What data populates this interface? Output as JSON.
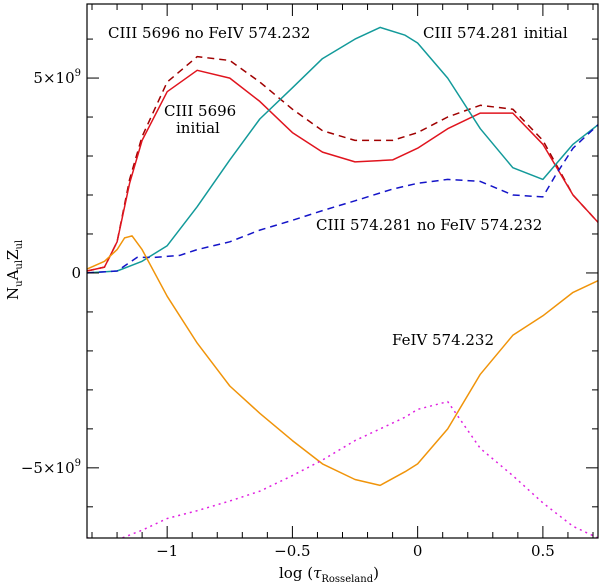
{
  "chart_data": {
    "type": "line",
    "xlabel": {
      "text": "log (",
      "tau": "τ",
      "sub": "Rosseland",
      "close": ")"
    },
    "ylabel": {
      "N": "N",
      "u1": "u",
      "A": "A",
      "ul1": "ul",
      "Z": "Z",
      "ul2": "ul"
    },
    "xlim": [
      -1.32,
      0.72
    ],
    "ylim": [
      -6.8,
      6.9
    ],
    "x_ticks": [
      {
        "value": -1.0,
        "label": "−1"
      },
      {
        "value": -0.5,
        "label": "−0.5"
      },
      {
        "value": 0.0,
        "label": "0"
      },
      {
        "value": 0.5,
        "label": "0.5"
      }
    ],
    "y_ticks": [
      {
        "value": 5,
        "mant": "5×10",
        "exp": "9"
      },
      {
        "value": 0,
        "mant": "0",
        "exp": ""
      },
      {
        "value": -5,
        "mant": "−5×10",
        "exp": "9"
      }
    ],
    "y_unit": "1e9",
    "series": [
      {
        "name": "CIII 5696 no FeIV 574.232",
        "color": "#a00000",
        "dash": "7,5",
        "width": 1.5,
        "x": [
          -1.32,
          -1.25,
          -1.2,
          -1.15,
          -1.1,
          -1.0,
          -0.88,
          -0.75,
          -0.63,
          -0.5,
          -0.38,
          -0.25,
          -0.1,
          0.0,
          0.12,
          0.25,
          0.38,
          0.5,
          0.62,
          0.72
        ],
        "y": [
          0.05,
          0.15,
          0.8,
          2.4,
          3.5,
          4.9,
          5.55,
          5.45,
          4.9,
          4.2,
          3.65,
          3.4,
          3.4,
          3.6,
          4.0,
          4.3,
          4.2,
          3.4,
          2.0,
          1.3
        ]
      },
      {
        "name": "CIII 5696 initial",
        "color": "#e0141e",
        "dash": "",
        "width": 1.5,
        "x": [
          -1.32,
          -1.25,
          -1.2,
          -1.15,
          -1.1,
          -1.0,
          -0.88,
          -0.75,
          -0.63,
          -0.5,
          -0.38,
          -0.25,
          -0.1,
          0.0,
          0.12,
          0.25,
          0.38,
          0.5,
          0.62,
          0.72
        ],
        "y": [
          0.05,
          0.15,
          0.8,
          2.3,
          3.4,
          4.65,
          5.2,
          5.0,
          4.4,
          3.6,
          3.1,
          2.85,
          2.9,
          3.2,
          3.7,
          4.1,
          4.1,
          3.3,
          2.0,
          1.3
        ]
      },
      {
        "name": "CIII 574.281 initial",
        "color": "#139a9a",
        "dash": "",
        "width": 1.5,
        "x": [
          -1.32,
          -1.2,
          -1.1,
          -1.0,
          -0.88,
          -0.75,
          -0.63,
          -0.5,
          -0.38,
          -0.25,
          -0.15,
          -0.05,
          0.0,
          0.12,
          0.25,
          0.38,
          0.5,
          0.62,
          0.72
        ],
        "y": [
          0.0,
          0.05,
          0.3,
          0.7,
          1.7,
          2.9,
          3.95,
          4.75,
          5.5,
          6.0,
          6.3,
          6.1,
          5.9,
          5.0,
          3.7,
          2.7,
          2.4,
          3.3,
          3.8
        ]
      },
      {
        "name": "CIII 574.281 no FeIV 574.232",
        "color": "#1414c8",
        "dash": "7,5",
        "width": 1.5,
        "x": [
          -1.32,
          -1.2,
          -1.12,
          -1.05,
          -0.95,
          -0.88,
          -0.75,
          -0.63,
          -0.5,
          -0.38,
          -0.25,
          -0.1,
          0.0,
          0.12,
          0.25,
          0.38,
          0.5,
          0.55,
          0.62,
          0.72
        ],
        "y": [
          0.0,
          0.05,
          0.4,
          0.4,
          0.45,
          0.6,
          0.8,
          1.1,
          1.35,
          1.6,
          1.85,
          2.15,
          2.3,
          2.4,
          2.35,
          2.0,
          1.95,
          2.5,
          3.2,
          3.8
        ]
      },
      {
        "name": "FeIV 574.232",
        "color": "#f0940a",
        "dash": "",
        "width": 1.5,
        "x": [
          -1.32,
          -1.25,
          -1.2,
          -1.17,
          -1.14,
          -1.1,
          -1.0,
          -0.88,
          -0.75,
          -0.63,
          -0.5,
          -0.38,
          -0.25,
          -0.15,
          -0.05,
          0.0,
          0.12,
          0.25,
          0.38,
          0.5,
          0.62,
          0.72
        ],
        "y": [
          0.1,
          0.3,
          0.6,
          0.9,
          0.95,
          0.6,
          -0.6,
          -1.8,
          -2.9,
          -3.6,
          -4.3,
          -4.9,
          -5.3,
          -5.45,
          -5.1,
          -4.9,
          -4.0,
          -2.6,
          -1.6,
          -1.1,
          -0.5,
          -0.2
        ]
      },
      {
        "name": "",
        "color": "#e020e0",
        "dash": "2,4",
        "width": 1.5,
        "x": [
          -1.32,
          -1.2,
          -1.1,
          -1.0,
          -0.88,
          -0.75,
          -0.63,
          -0.5,
          -0.38,
          -0.25,
          -0.15,
          -0.05,
          0.0,
          0.12,
          0.25,
          0.38,
          0.5,
          0.62,
          0.72
        ],
        "y": [
          -6.8,
          -6.85,
          -6.6,
          -6.3,
          -6.1,
          -5.85,
          -5.6,
          -5.2,
          -4.8,
          -4.3,
          -4.0,
          -3.7,
          -3.5,
          -3.3,
          -4.5,
          -5.2,
          -5.9,
          -6.5,
          -6.8
        ]
      }
    ],
    "annotations": [
      {
        "text": "CIII 5696 no FeIV 574.232",
        "color": "#a00000"
      },
      {
        "text": "CIII 574.281 initial",
        "color": "#139a9a"
      },
      {
        "text": "CIII 5696",
        "color": "#e0141e"
      },
      {
        "text": "initial",
        "color": "#e0141e"
      },
      {
        "text": "CIII 574.281 no FeIV 574.232",
        "color": "#1414c8"
      },
      {
        "text": "FeIV 574.232",
        "color": "#f0940a"
      }
    ]
  }
}
